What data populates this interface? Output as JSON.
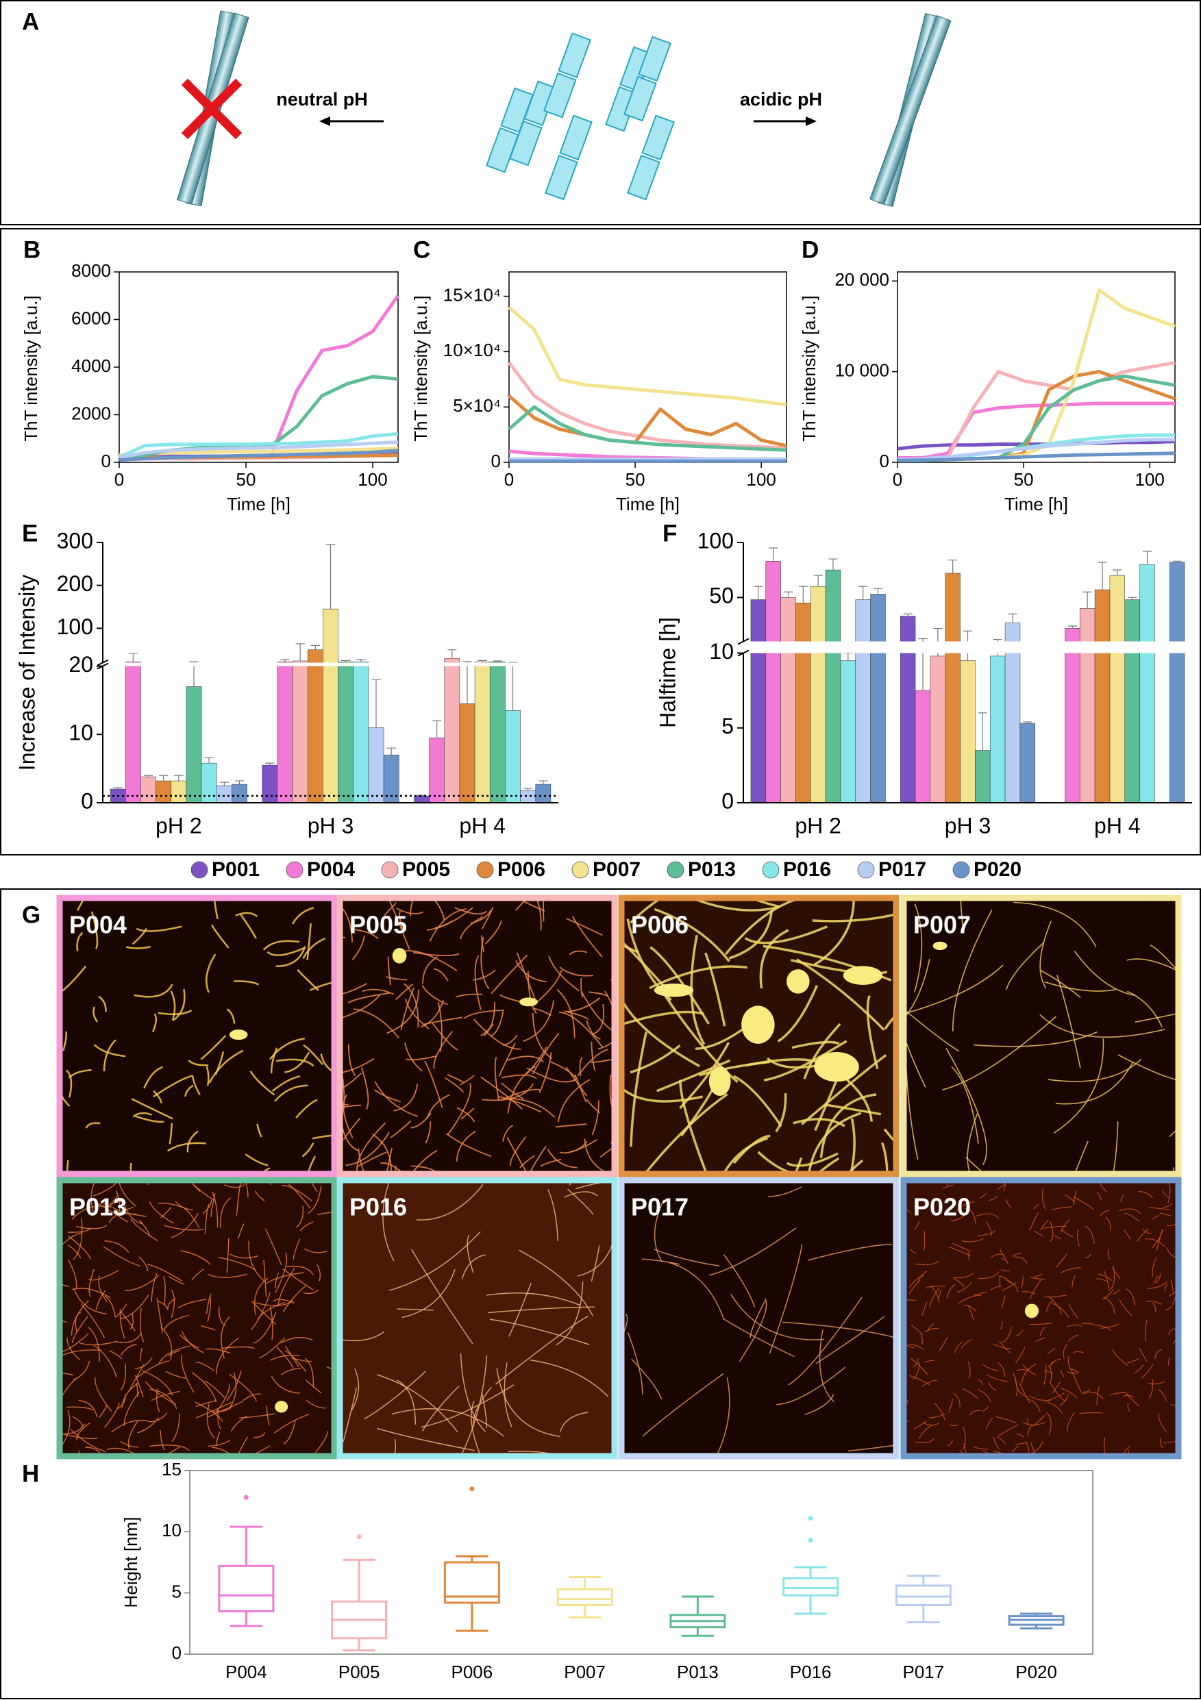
{
  "panel_a": {
    "label": "A",
    "left_label": "neutral pH",
    "right_label": "acidic pH"
  },
  "chart_data": [
    {
      "type": "line",
      "panel": "B",
      "ylabel": "ThT intensity [a.u.]",
      "xlabel": "Time [h]",
      "x": [
        0,
        10,
        20,
        30,
        40,
        50,
        60,
        70,
        80,
        90,
        100,
        110
      ],
      "xlim": [
        0,
        110
      ],
      "xticks": [
        0,
        50,
        100
      ],
      "ylim": [
        0,
        8000
      ],
      "yticks": [
        0,
        2000,
        4000,
        6000,
        8000
      ],
      "series": [
        {
          "name": "P001",
          "color": "#7b52c4",
          "values": [
            250,
            250,
            250,
            250,
            260,
            270,
            280,
            300,
            320,
            350,
            400,
            450
          ]
        },
        {
          "name": "P004",
          "color": "#f27ad6",
          "values": [
            200,
            200,
            200,
            220,
            230,
            250,
            300,
            3000,
            4700,
            4900,
            5500,
            7000
          ]
        },
        {
          "name": "P005",
          "color": "#f7b2b5",
          "values": [
            150,
            150,
            150,
            150,
            160,
            170,
            180,
            200,
            220,
            250,
            280,
            300
          ]
        },
        {
          "name": "P006",
          "color": "#e0883a",
          "values": [
            200,
            200,
            200,
            210,
            220,
            230,
            240,
            250,
            260,
            270,
            280,
            300
          ]
        },
        {
          "name": "P007",
          "color": "#f3e38e",
          "values": [
            300,
            350,
            400,
            420,
            440,
            450,
            460,
            480,
            500,
            520,
            550,
            600
          ]
        },
        {
          "name": "P013",
          "color": "#5cbd96",
          "values": [
            200,
            300,
            500,
            600,
            650,
            700,
            700,
            1500,
            2800,
            3300,
            3600,
            3500
          ]
        },
        {
          "name": "P016",
          "color": "#86e6ea",
          "values": [
            200,
            700,
            750,
            750,
            760,
            760,
            780,
            800,
            850,
            900,
            1100,
            1200
          ]
        },
        {
          "name": "P017",
          "color": "#b7cdf4",
          "values": [
            200,
            400,
            500,
            550,
            580,
            600,
            620,
            650,
            700,
            750,
            800,
            850
          ]
        },
        {
          "name": "P020",
          "color": "#6a93c8",
          "values": [
            100,
            150,
            200,
            230,
            250,
            280,
            300,
            330,
            350,
            380,
            420,
            500
          ]
        }
      ]
    },
    {
      "type": "line",
      "panel": "C",
      "ylabel": "ThT intensity [a.u.]",
      "xlabel": "Time [h]",
      "x": [
        0,
        10,
        20,
        30,
        40,
        50,
        60,
        70,
        80,
        90,
        100,
        110
      ],
      "xlim": [
        0,
        110
      ],
      "xticks": [
        0,
        50,
        100
      ],
      "ylim": [
        0,
        172000
      ],
      "yticks": [
        0,
        {
          "value": 50000,
          "label": "5×10⁴"
        },
        {
          "value": 100000,
          "label": "10×10⁴"
        },
        {
          "value": 150000,
          "label": "15×10⁴"
        }
      ],
      "series": [
        {
          "name": "P001",
          "color": "#7b52c4",
          "values": [
            1000,
            1000,
            1000,
            1000,
            1000,
            1000,
            1000,
            1000,
            1000,
            1000,
            1000,
            1000
          ]
        },
        {
          "name": "P004",
          "color": "#f27ad6",
          "values": [
            10000,
            8000,
            7000,
            6000,
            5000,
            4500,
            4000,
            3500,
            3000,
            3000,
            2500,
            2500
          ]
        },
        {
          "name": "P005",
          "color": "#f7b2b5",
          "values": [
            90000,
            60000,
            45000,
            35000,
            28000,
            24000,
            20000,
            18000,
            16000,
            15000,
            14000,
            13000
          ]
        },
        {
          "name": "P006",
          "color": "#e0883a",
          "values": [
            60000,
            40000,
            30000,
            25000,
            20000,
            18000,
            48000,
            30000,
            25000,
            35000,
            20000,
            15000
          ]
        },
        {
          "name": "P007",
          "color": "#f3e38e",
          "values": [
            140000,
            120000,
            75000,
            70000,
            68000,
            66000,
            64000,
            62000,
            60000,
            58000,
            55000,
            52000
          ]
        },
        {
          "name": "P013",
          "color": "#5cbd96",
          "values": [
            30000,
            50000,
            35000,
            25000,
            20000,
            18000,
            16000,
            15000,
            14000,
            13000,
            12000,
            11000
          ]
        },
        {
          "name": "P016",
          "color": "#86e6ea",
          "values": [
            2000,
            2000,
            2000,
            2000,
            2000,
            2000,
            2000,
            2000,
            2000,
            2000,
            2000,
            2000
          ]
        },
        {
          "name": "P017",
          "color": "#b7cdf4",
          "values": [
            3000,
            3000,
            3000,
            3000,
            3000,
            3000,
            3000,
            3000,
            3000,
            3000,
            3000,
            3000
          ]
        },
        {
          "name": "P020",
          "color": "#6a93c8",
          "values": [
            1000,
            1000,
            1000,
            1000,
            1000,
            1000,
            1000,
            1000,
            1000,
            1000,
            1000,
            1000
          ]
        }
      ]
    },
    {
      "type": "line",
      "panel": "D",
      "ylabel": "ThT intensity [a.u.]",
      "xlabel": "Time [h]",
      "x": [
        0,
        10,
        20,
        30,
        40,
        50,
        60,
        70,
        80,
        90,
        100,
        110
      ],
      "xlim": [
        0,
        110
      ],
      "xticks": [
        0,
        50,
        100
      ],
      "ylim": [
        0,
        21000
      ],
      "yticks": [
        0,
        {
          "value": 10000,
          "label": "10 000"
        },
        {
          "value": 20000,
          "label": "20 000"
        }
      ],
      "series": [
        {
          "name": "P001",
          "color": "#7b52c4",
          "values": [
            1500,
            1800,
            1900,
            1900,
            2000,
            2000,
            2000,
            2100,
            2100,
            2200,
            2200,
            2300
          ]
        },
        {
          "name": "P004",
          "color": "#f27ad6",
          "values": [
            500,
            500,
            1000,
            5500,
            6000,
            6200,
            6300,
            6400,
            6500,
            6500,
            6500,
            6500
          ]
        },
        {
          "name": "P005",
          "color": "#f7b2b5",
          "values": [
            300,
            300,
            500,
            6000,
            10000,
            9000,
            8500,
            8000,
            9000,
            10000,
            10500,
            11000
          ]
        },
        {
          "name": "P006",
          "color": "#e0883a",
          "values": [
            300,
            300,
            300,
            400,
            500,
            1000,
            8000,
            9500,
            10000,
            9000,
            8000,
            7000
          ]
        },
        {
          "name": "P007",
          "color": "#f3e38e",
          "values": [
            300,
            300,
            300,
            400,
            500,
            800,
            2000,
            9000,
            19000,
            17000,
            16000,
            15000
          ]
        },
        {
          "name": "P013",
          "color": "#5cbd96",
          "values": [
            200,
            200,
            300,
            400,
            500,
            2000,
            6000,
            8000,
            9000,
            9500,
            9000,
            8500
          ]
        },
        {
          "name": "P016",
          "color": "#86e6ea",
          "values": [
            200,
            300,
            500,
            800,
            1200,
            1600,
            2000,
            2400,
            2700,
            2900,
            3000,
            3000
          ]
        },
        {
          "name": "P017",
          "color": "#b7cdf4",
          "values": [
            300,
            400,
            600,
            900,
            1200,
            1500,
            1800,
            2000,
            2200,
            2400,
            2500,
            2500
          ]
        },
        {
          "name": "P020",
          "color": "#6a93c8",
          "values": [
            200,
            250,
            300,
            400,
            500,
            600,
            700,
            800,
            850,
            900,
            950,
            1000
          ]
        }
      ]
    },
    {
      "type": "bar",
      "panel": "E",
      "ylabel": "Increase of Intensity",
      "categories": [
        "pH 2",
        "pH 3",
        "pH 4"
      ],
      "ylim": [
        0,
        300
      ],
      "ybreak": 20,
      "yticks": [
        0,
        10,
        20,
        100,
        200,
        300
      ],
      "reference_line": 1,
      "series": [
        {
          "name": "P001",
          "color": "#7b52c4",
          "values": [
            2,
            5.5,
            1
          ],
          "errors": [
            0.2,
            0.3,
            0.1
          ]
        },
        {
          "name": "P004",
          "color": "#f27ad6",
          "values": [
            22,
            22,
            9.5
          ],
          "errors": [
            20,
            5,
            2.5
          ]
        },
        {
          "name": "P005",
          "color": "#f7b2b5",
          "values": [
            3.8,
            24,
            30
          ],
          "errors": [
            0.2,
            40,
            20
          ]
        },
        {
          "name": "P006",
          "color": "#e0883a",
          "values": [
            3.2,
            50,
            14.5
          ],
          "errors": [
            0.8,
            10,
            8
          ]
        },
        {
          "name": "P007",
          "color": "#f3e38e",
          "values": [
            3.2,
            145,
            22
          ],
          "errors": [
            0.8,
            150,
            3
          ]
        },
        {
          "name": "P013",
          "color": "#5cbd96",
          "values": [
            17,
            22,
            22
          ],
          "errors": [
            5,
            3,
            2
          ]
        },
        {
          "name": "P016",
          "color": "#86e6ea",
          "values": [
            5.8,
            22,
            13.5
          ],
          "errors": [
            0.8,
            5,
            7
          ]
        },
        {
          "name": "P017",
          "color": "#b7cdf4",
          "values": [
            2.5,
            11,
            1.8
          ],
          "errors": [
            0.5,
            7,
            0.3
          ]
        },
        {
          "name": "P020",
          "color": "#6a93c8",
          "values": [
            2.7,
            7,
            2.7
          ],
          "errors": [
            0.5,
            1,
            0.5
          ]
        }
      ]
    },
    {
      "type": "bar",
      "panel": "F",
      "ylabel": "Halftime [h]",
      "categories": [
        "pH 2",
        "pH 3",
        "pH 4"
      ],
      "ylim": [
        0,
        100
      ],
      "ybreak": 10,
      "yticks": [
        0,
        5,
        10,
        50,
        100
      ],
      "series": [
        {
          "name": "P001",
          "color": "#7b52c4",
          "values": [
            48,
            33,
            null
          ],
          "errors": [
            12,
            2,
            null
          ]
        },
        {
          "name": "P004",
          "color": "#f27ad6",
          "values": [
            83,
            7.5,
            22
          ],
          "errors": [
            12,
            5,
            2
          ]
        },
        {
          "name": "P005",
          "color": "#f7b2b5",
          "values": [
            50,
            9.8,
            40
          ],
          "errors": [
            5,
            12,
            15
          ]
        },
        {
          "name": "P006",
          "color": "#e0883a",
          "values": [
            45,
            72,
            57
          ],
          "errors": [
            15,
            12,
            25
          ]
        },
        {
          "name": "P007",
          "color": "#f3e38e",
          "values": [
            60,
            9.5,
            70
          ],
          "errors": [
            10,
            10,
            5
          ]
        },
        {
          "name": "P013",
          "color": "#5cbd96",
          "values": [
            75,
            3.5,
            48
          ],
          "errors": [
            10,
            2.5,
            2
          ]
        },
        {
          "name": "P016",
          "color": "#86e6ea",
          "values": [
            9.5,
            9.8,
            80
          ],
          "errors": [
            0.5,
            2,
            12
          ]
        },
        {
          "name": "P017",
          "color": "#b7cdf4",
          "values": [
            48,
            27,
            null
          ],
          "errors": [
            12,
            8,
            null
          ]
        },
        {
          "name": "P020",
          "color": "#6a93c8",
          "values": [
            53,
            5.3,
            82
          ],
          "errors": [
            5,
            0.1,
            1
          ]
        }
      ]
    },
    {
      "type": "box",
      "panel": "H",
      "ylabel": "Height [nm]",
      "categories": [
        "P004",
        "P005",
        "P006",
        "P007",
        "P013",
        "P016",
        "P017",
        "P020"
      ],
      "ylim": [
        0,
        15
      ],
      "yticks": [
        0,
        5,
        10,
        15
      ],
      "boxes": [
        {
          "color": "#f27ad6",
          "min": 2.3,
          "q1": 3.5,
          "median": 4.8,
          "q3": 7.2,
          "max": 10.4,
          "outliers": [
            12.8
          ]
        },
        {
          "color": "#f7b2b5",
          "min": 0.3,
          "q1": 1.3,
          "median": 2.8,
          "q3": 4.3,
          "max": 7.7,
          "outliers": [
            9.6
          ]
        },
        {
          "color": "#e0883a",
          "min": 1.9,
          "q1": 4.2,
          "median": 4.7,
          "q3": 7.5,
          "max": 8.0,
          "outliers": [
            13.5
          ]
        },
        {
          "color": "#f3e38e",
          "min": 3.0,
          "q1": 4.0,
          "median": 4.5,
          "q3": 5.3,
          "max": 6.3
        },
        {
          "color": "#5cbd96",
          "min": 1.5,
          "q1": 2.2,
          "median": 2.7,
          "q3": 3.2,
          "max": 4.7
        },
        {
          "color": "#86e6ea",
          "min": 3.3,
          "q1": 4.8,
          "median": 5.4,
          "q3": 6.2,
          "max": 7.1,
          "outliers": [
            9.3,
            11.1
          ]
        },
        {
          "color": "#b7cdf4",
          "min": 2.6,
          "q1": 4.0,
          "median": 4.7,
          "q3": 5.6,
          "max": 6.4
        },
        {
          "color": "#6a93c8",
          "min": 2.1,
          "q1": 2.4,
          "median": 2.8,
          "q3": 3.1,
          "max": 3.3
        }
      ]
    }
  ],
  "panel_g": {
    "label": "G",
    "images": [
      {
        "name": "P004",
        "color": "#f49ad9"
      },
      {
        "name": "P005",
        "color": "#f7b9bb"
      },
      {
        "name": "P006",
        "color": "#e0913f"
      },
      {
        "name": "P007",
        "color": "#f3e59a"
      },
      {
        "name": "P013",
        "color": "#67bd98"
      },
      {
        "name": "P016",
        "color": "#9aeaee"
      },
      {
        "name": "P017",
        "color": "#c3d6f6"
      },
      {
        "name": "P020",
        "color": "#6f98cb"
      }
    ]
  }
}
